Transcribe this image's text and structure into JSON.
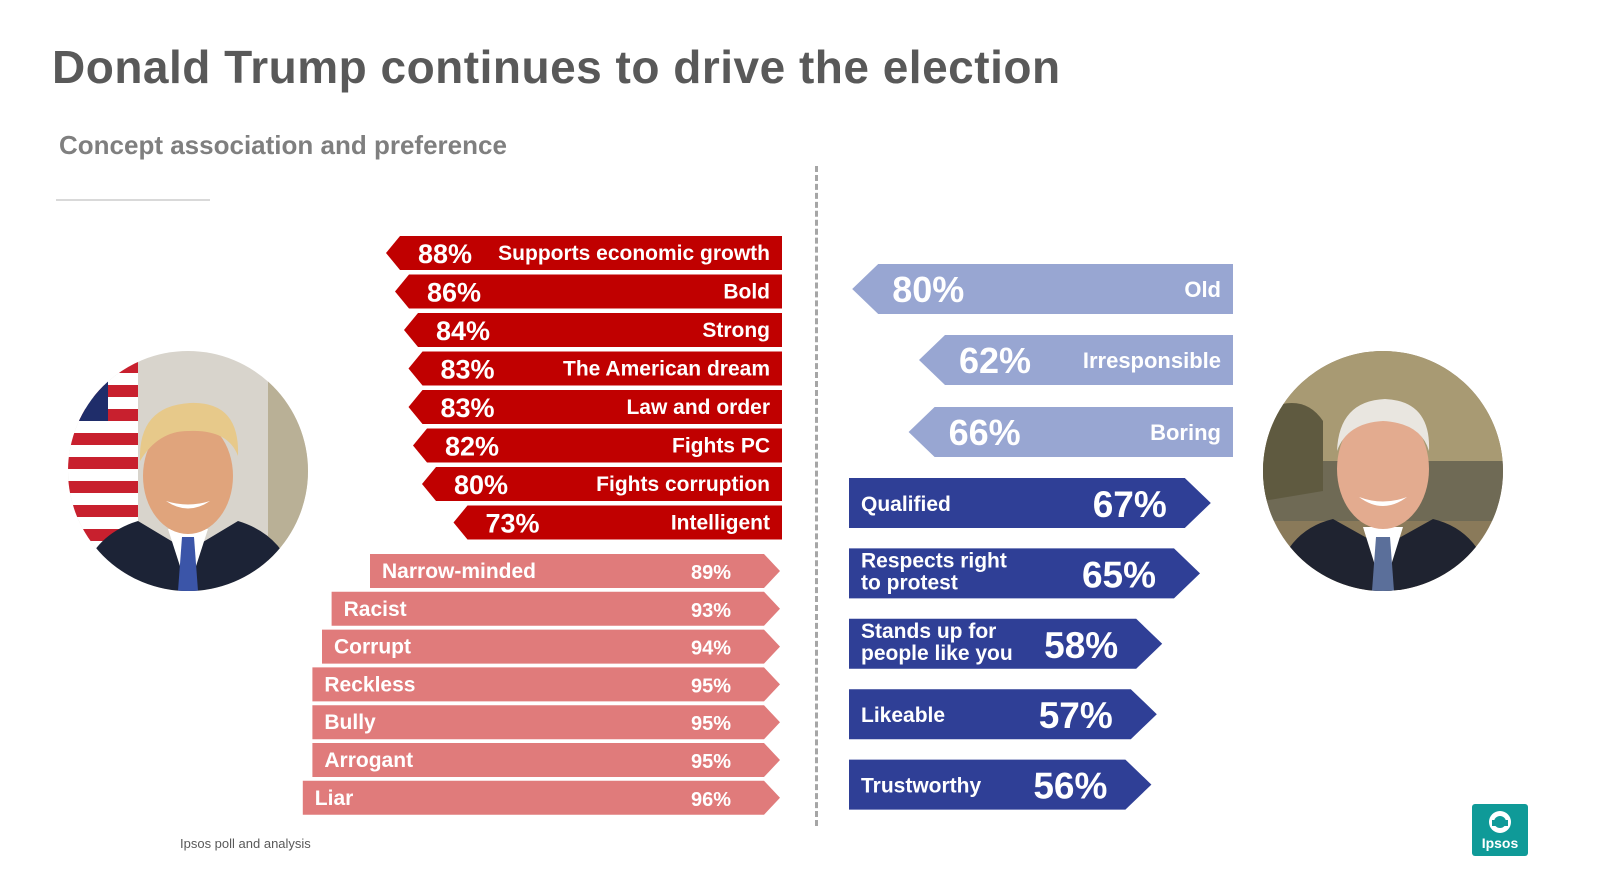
{
  "title": "Donald Trump continues to drive the election",
  "subtitle": "Concept association and preference",
  "source": "Ipsos poll and analysis",
  "logo_text": "Ipsos",
  "chart_data": {
    "type": "bar",
    "value_unit": "%",
    "colors": {
      "trump_positive": "#c00000",
      "trump_negative": "#e07b7b",
      "biden_negative": "#98a6d2",
      "biden_positive": "#2f3f96"
    },
    "series": [
      {
        "name": "Trump positive associations",
        "side": "left",
        "direction": "left",
        "categories": [
          "Supports economic growth",
          "Bold",
          "Strong",
          "The American dream",
          "Law and order",
          "Fights PC",
          "Fights corruption",
          "Intelligent"
        ],
        "values": [
          88,
          86,
          84,
          83,
          83,
          82,
          80,
          73
        ]
      },
      {
        "name": "Trump negative associations",
        "side": "left",
        "direction": "right",
        "categories": [
          "Narrow-minded",
          "Racist",
          "Corrupt",
          "Reckless",
          "Bully",
          "Arrogant",
          "Liar"
        ],
        "values": [
          89,
          93,
          94,
          95,
          95,
          95,
          96
        ]
      },
      {
        "name": "Biden negative associations",
        "side": "right",
        "direction": "left",
        "categories": [
          "Old",
          "Irresponsible",
          "Boring"
        ],
        "values": [
          80,
          62,
          66
        ]
      },
      {
        "name": "Biden positive associations",
        "side": "right",
        "direction": "right",
        "categories": [
          "Qualified",
          "Respects right to protest",
          "Stands up for people like you",
          "Likeable",
          "Trustworthy"
        ],
        "label_lines": [
          [
            "Qualified"
          ],
          [
            "Respects right",
            "to protest"
          ],
          [
            "Stands up for",
            "people like you"
          ],
          [
            "Likeable"
          ],
          [
            "Trustworthy"
          ]
        ],
        "values": [
          67,
          65,
          58,
          57,
          56
        ]
      }
    ]
  }
}
